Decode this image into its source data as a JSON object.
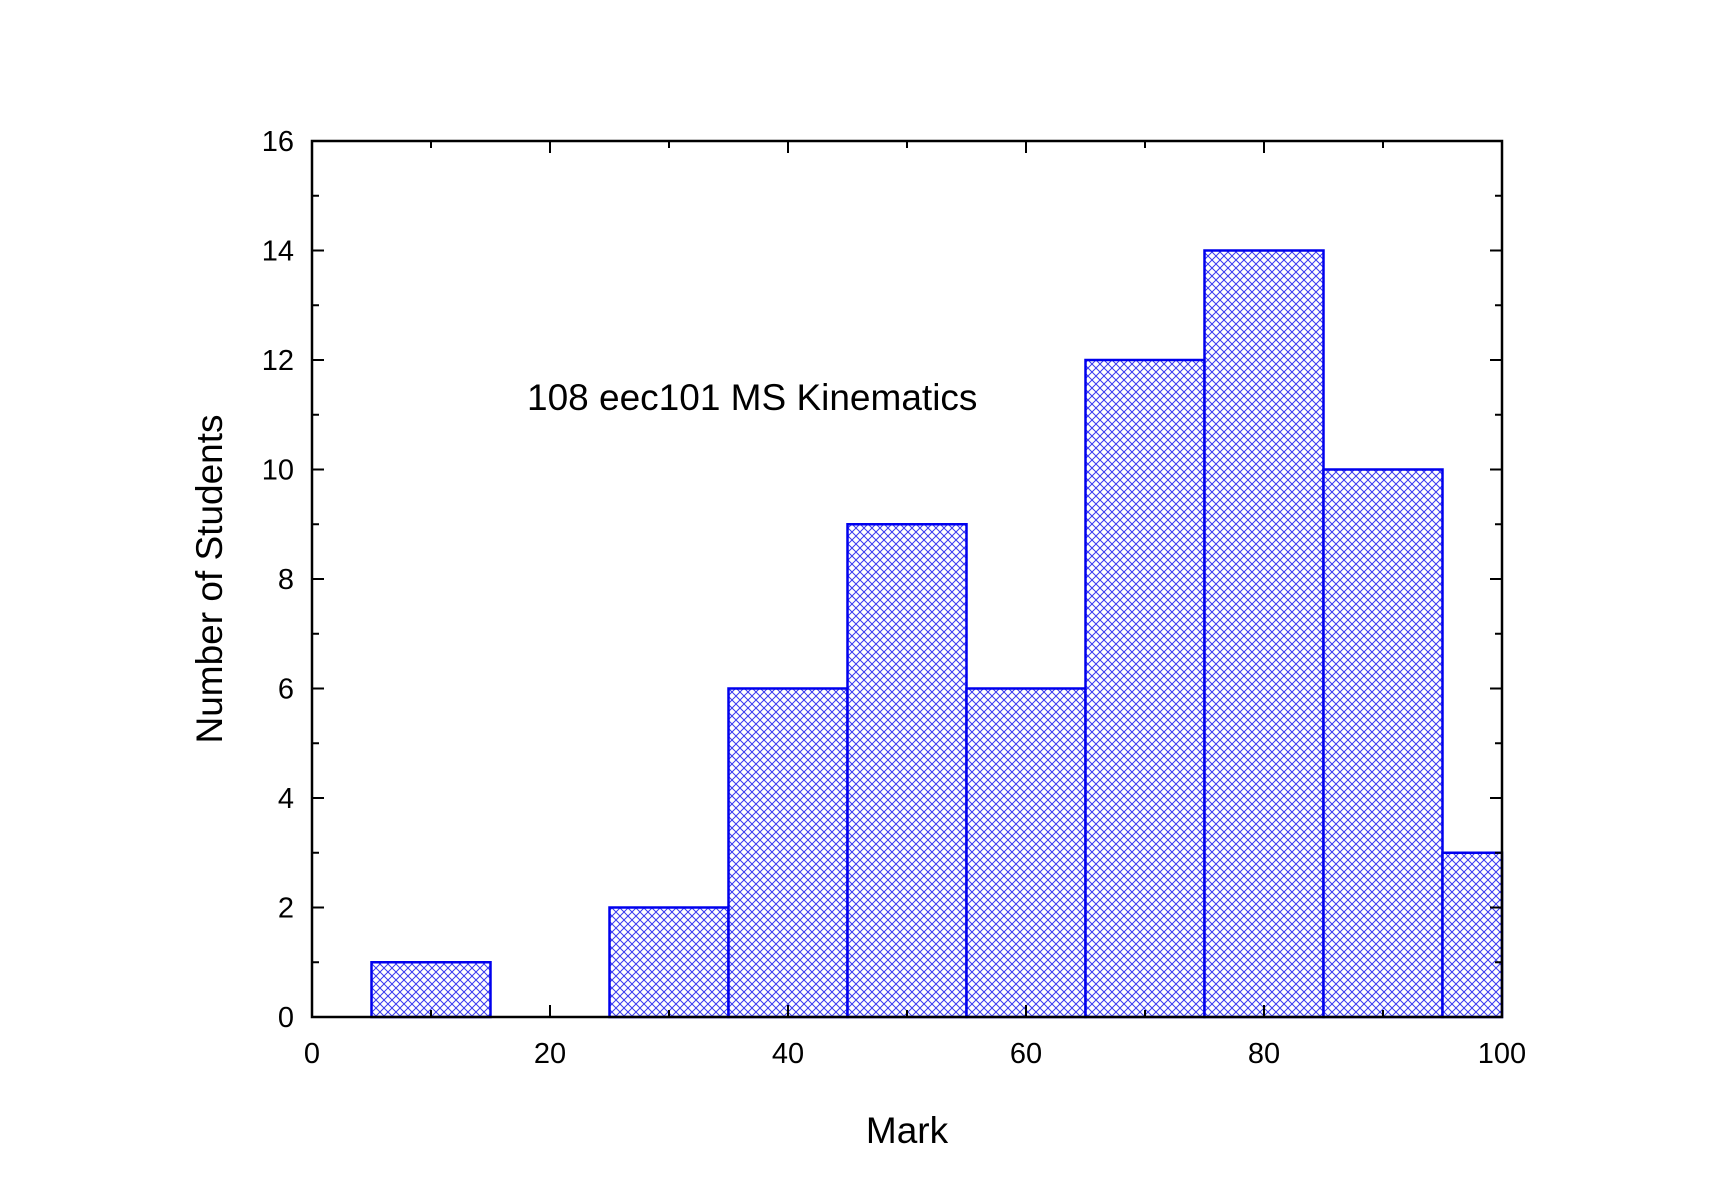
{
  "chart_data": {
    "type": "bar",
    "title": "",
    "annotation": "108 eec101 MS Kinematics",
    "xlabel": "Mark",
    "ylabel": "Number of Students",
    "xlim": [
      0,
      100
    ],
    "ylim": [
      0,
      16
    ],
    "x_ticks": [
      0,
      20,
      40,
      60,
      80,
      100
    ],
    "y_ticks": [
      0,
      2,
      4,
      6,
      8,
      10,
      12,
      14,
      16
    ],
    "bin_width": 10,
    "bars": [
      {
        "center": 10,
        "value": 1
      },
      {
        "center": 20,
        "value": 0
      },
      {
        "center": 30,
        "value": 2
      },
      {
        "center": 40,
        "value": 6
      },
      {
        "center": 50,
        "value": 9
      },
      {
        "center": 60,
        "value": 6
      },
      {
        "center": 70,
        "value": 12
      },
      {
        "center": 80,
        "value": 14
      },
      {
        "center": 90,
        "value": 10
      },
      {
        "center": 100,
        "value": 3
      }
    ],
    "grid": false,
    "colors": {
      "bar_edge": "#0000ee",
      "hatch": "#3a3af0",
      "axis": "#000000"
    }
  }
}
